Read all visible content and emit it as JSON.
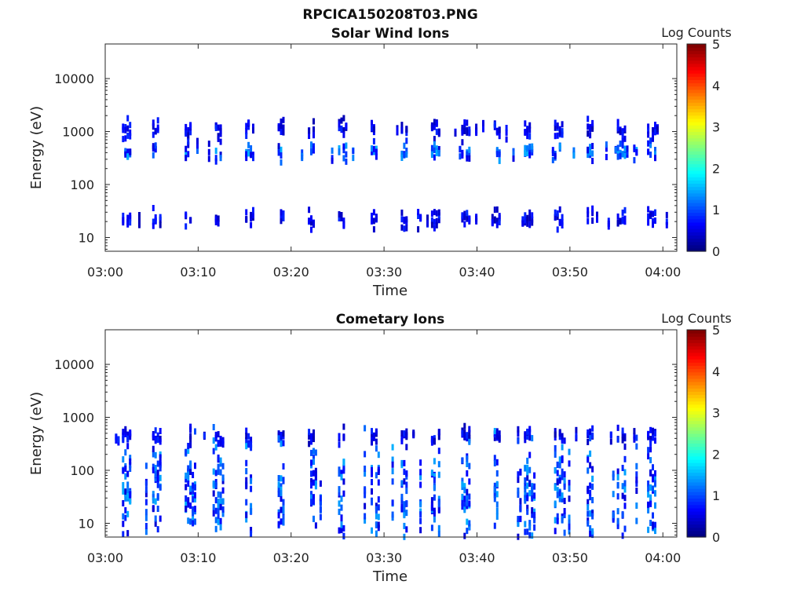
{
  "figure_title": "RPCICA150208T03.PNG",
  "chart_data": [
    {
      "type": "heatmap",
      "title": "Solar Wind Ions",
      "xlabel": "Time",
      "ylabel": "Energy (eV)",
      "x_ticks": [
        "03:00",
        "03:10",
        "03:20",
        "03:30",
        "03:40",
        "03:50",
        "04:00"
      ],
      "xlim_minutes": [
        0,
        61.5
      ],
      "y_scale": "log",
      "ylim": [
        5.5,
        45000
      ],
      "y_ticks": [
        "10",
        "100",
        "1000",
        "10000"
      ],
      "colorbar": {
        "label": "Log Counts",
        "range": [
          0,
          5
        ],
        "ticks": [
          "0",
          "1",
          "2",
          "3",
          "4",
          "5"
        ],
        "colormap": "jet"
      },
      "grid": false,
      "description_bands": [
        {
          "energy_eV": 1100,
          "level": "low"
        },
        {
          "energy_eV": 420,
          "level": "low-medium"
        },
        {
          "energy_eV": 22,
          "level": "low"
        }
      ]
    },
    {
      "type": "heatmap",
      "title": "Cometary Ions",
      "xlabel": "Time",
      "ylabel": "Energy (eV)",
      "x_ticks": [
        "03:00",
        "03:10",
        "03:20",
        "03:30",
        "03:40",
        "03:50",
        "04:00"
      ],
      "xlim_minutes": [
        0,
        61.5
      ],
      "y_scale": "log",
      "ylim": [
        5.5,
        45000
      ],
      "y_ticks": [
        "10",
        "100",
        "1000",
        "10000"
      ],
      "colorbar": {
        "label": "Log Counts",
        "range": [
          0,
          5
        ],
        "ticks": [
          "0",
          "1",
          "2",
          "3",
          "4",
          "5"
        ],
        "colormap": "jet"
      },
      "grid": false,
      "description_bands": [
        {
          "energy_eV": 420,
          "level": "low"
        },
        {
          "energy_eV": 35,
          "level": "low-medium"
        }
      ]
    }
  ],
  "colors": {
    "low": "#00008f",
    "mid": "#0a3cff",
    "high": "#1fa0ff",
    "axis": "#262626"
  }
}
